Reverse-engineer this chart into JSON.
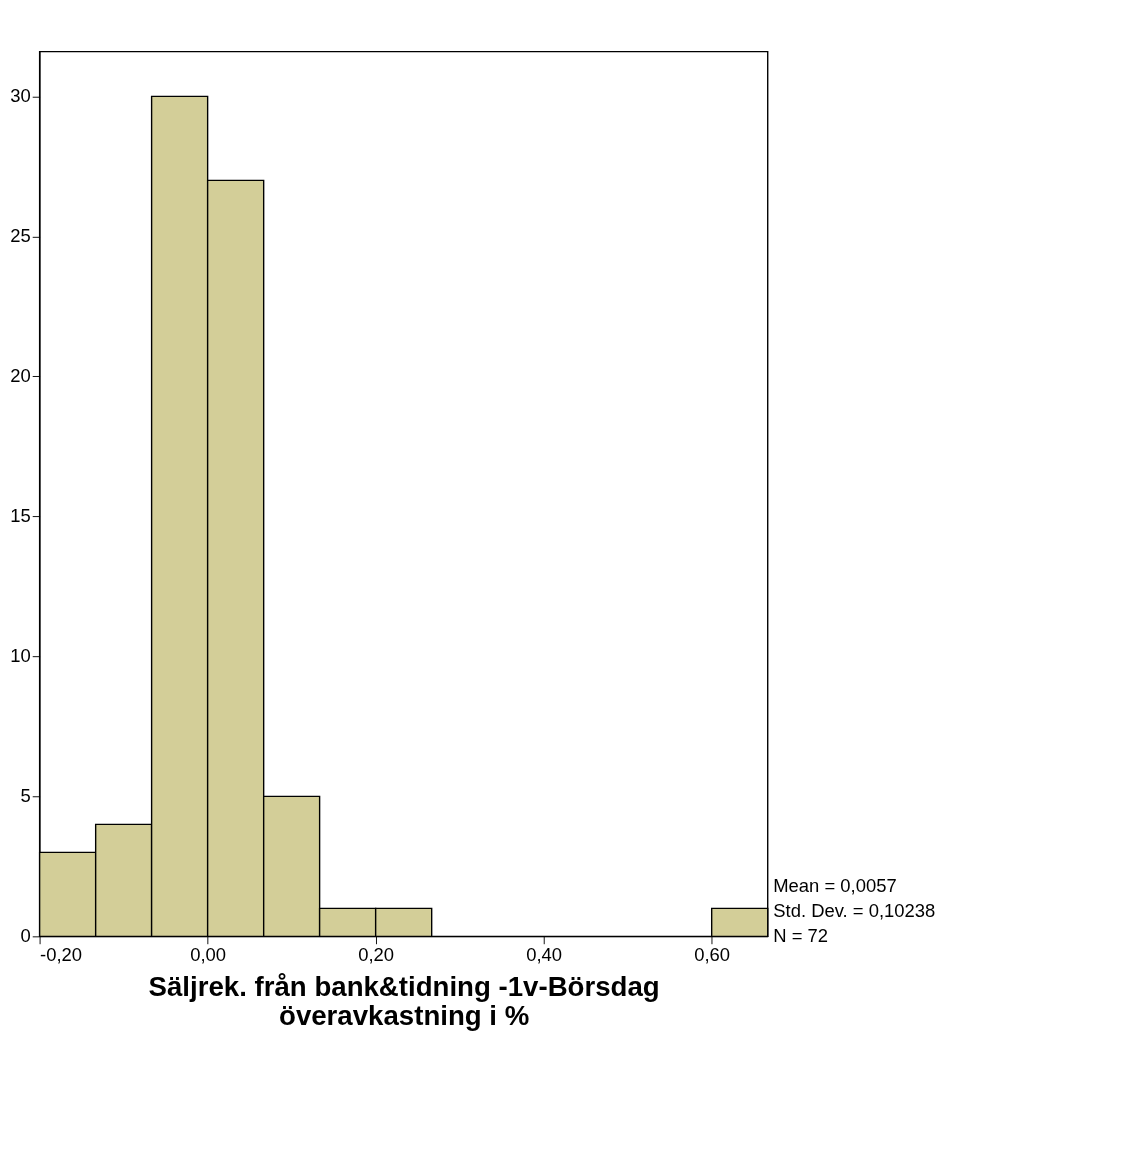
{
  "chart_data": {
    "type": "histogram",
    "xlabel": "Säljrek. från bank&tidning -1v-Börsdag överavkastning i %",
    "bins": [
      -0.2,
      -0.1333,
      -0.0667,
      0.0,
      0.0667,
      0.1333,
      0.2,
      0.2667,
      0.3333,
      0.4,
      0.4667,
      0.5333,
      0.6,
      0.6667
    ],
    "values": [
      3,
      4,
      30,
      27,
      5,
      1,
      1,
      0,
      0,
      0,
      0,
      0,
      1
    ],
    "color": "#d3ce98",
    "xlim": [
      -0.2,
      0.6667
    ],
    "xticks": [
      {
        "value": -0.2,
        "label": "-0,20"
      },
      {
        "value": 0.0,
        "label": "0,00"
      },
      {
        "value": 0.2,
        "label": "0,20"
      },
      {
        "value": 0.4,
        "label": "0,40"
      },
      {
        "value": 0.6,
        "label": "0,60"
      }
    ],
    "ylim": [
      0,
      31.6
    ],
    "yticks": [
      0,
      5,
      10,
      15,
      20,
      25,
      30
    ],
    "grid": false,
    "annotations": [
      "Mean = 0,0057",
      "Std. Dev. = 0,10238",
      "N = 72"
    ]
  }
}
